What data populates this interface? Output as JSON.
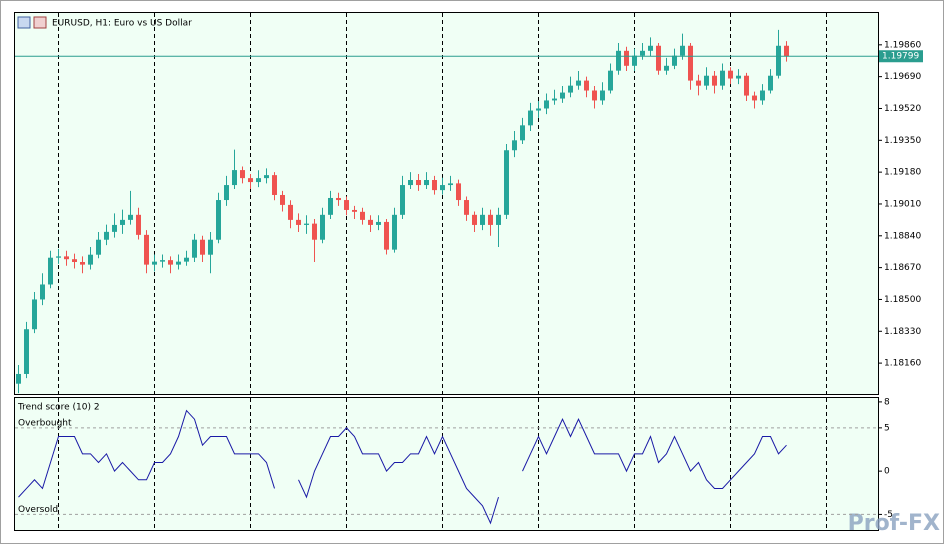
{
  "chart_data": [
    {
      "type": "candlestick",
      "title": "EURUSD, H1:  Euro vs US Dollar",
      "up_color": "#26a69a",
      "down_color": "#ef5350",
      "candles": [
        [
          1.1805,
          1.1815,
          1.18,
          1.18102
        ],
        [
          1.18102,
          1.1838,
          1.1808,
          1.18341
        ],
        [
          1.18341,
          1.1854,
          1.1832,
          1.185
        ],
        [
          1.185,
          1.1864,
          1.1847,
          1.1858
        ],
        [
          1.1858,
          1.1876,
          1.1856,
          1.18723
        ],
        [
          1.18723,
          1.1877,
          1.1869,
          1.1873
        ],
        [
          1.1873,
          1.1876,
          1.1868,
          1.18715
        ],
        [
          1.18715,
          1.18745,
          1.18665,
          1.187
        ],
        [
          1.187,
          1.1873,
          1.1864,
          1.18686
        ],
        [
          1.18686,
          1.1878,
          1.1866,
          1.18739
        ],
        [
          1.18739,
          1.1886,
          1.1872,
          1.18819
        ],
        [
          1.18819,
          1.189,
          1.1879,
          1.18861
        ],
        [
          1.18861,
          1.1896,
          1.1883,
          1.18898
        ],
        [
          1.18898,
          1.1898,
          1.1885,
          1.18925
        ],
        [
          1.18925,
          1.1908,
          1.189,
          1.18952
        ],
        [
          1.18952,
          1.1899,
          1.1882,
          1.18845
        ],
        [
          1.18845,
          1.1887,
          1.1864,
          1.18686
        ],
        [
          1.18686,
          1.1874,
          1.1865,
          1.18702
        ],
        [
          1.18702,
          1.1874,
          1.1867,
          1.1871
        ],
        [
          1.1871,
          1.1873,
          1.1864,
          1.18686
        ],
        [
          1.18686,
          1.1874,
          1.1866,
          1.18702
        ],
        [
          1.18702,
          1.1876,
          1.1868,
          1.18723
        ],
        [
          1.18723,
          1.1885,
          1.187,
          1.18819
        ],
        [
          1.18819,
          1.1884,
          1.187,
          1.18739
        ],
        [
          1.18739,
          1.1886,
          1.1864,
          1.18819
        ],
        [
          1.18819,
          1.1907,
          1.188,
          1.19031
        ],
        [
          1.19031,
          1.1916,
          1.19,
          1.19111
        ],
        [
          1.19111,
          1.193,
          1.1909,
          1.19191
        ],
        [
          1.19191,
          1.1921,
          1.1912,
          1.19148
        ],
        [
          1.19148,
          1.1917,
          1.1909,
          1.19127
        ],
        [
          1.19127,
          1.1919,
          1.191,
          1.19148
        ],
        [
          1.19148,
          1.192,
          1.1912,
          1.19164
        ],
        [
          1.19164,
          1.1918,
          1.1903,
          1.19058
        ],
        [
          1.19058,
          1.1908,
          1.1897,
          1.19005
        ],
        [
          1.19005,
          1.1903,
          1.1888,
          1.18925
        ],
        [
          1.18925,
          1.1896,
          1.1886,
          1.18898
        ],
        [
          1.18898,
          1.1895,
          1.1885,
          1.18905
        ],
        [
          1.18905,
          1.1893,
          1.187,
          1.18819
        ],
        [
          1.18819,
          1.1899,
          1.188,
          1.18952
        ],
        [
          1.18952,
          1.1908,
          1.1893,
          1.19042
        ],
        [
          1.19042,
          1.1907,
          1.19,
          1.19031
        ],
        [
          1.19031,
          1.1905,
          1.1895,
          1.18978
        ],
        [
          1.18978,
          1.19,
          1.1893,
          1.18968
        ],
        [
          1.18968,
          1.1899,
          1.189,
          1.18925
        ],
        [
          1.18925,
          1.1895,
          1.1886,
          1.18898
        ],
        [
          1.18898,
          1.1895,
          1.1887,
          1.18914
        ],
        [
          1.18914,
          1.1893,
          1.1874,
          1.18766
        ],
        [
          1.18766,
          1.1899,
          1.1875,
          1.18952
        ],
        [
          1.18952,
          1.1916,
          1.1893,
          1.19111
        ],
        [
          1.19111,
          1.1918,
          1.1909,
          1.19138
        ],
        [
          1.19138,
          1.1917,
          1.1908,
          1.19111
        ],
        [
          1.19111,
          1.1918,
          1.1909,
          1.19138
        ],
        [
          1.19138,
          1.1916,
          1.1906,
          1.19084
        ],
        [
          1.19084,
          1.1915,
          1.1906,
          1.19111
        ],
        [
          1.19111,
          1.1916,
          1.1908,
          1.1912
        ],
        [
          1.1912,
          1.1914,
          1.19,
          1.19031
        ],
        [
          1.19031,
          1.1905,
          1.1892,
          1.18952
        ],
        [
          1.18952,
          1.1897,
          1.1886,
          1.18898
        ],
        [
          1.18898,
          1.1899,
          1.1887,
          1.18952
        ],
        [
          1.18952,
          1.1898,
          1.1884,
          1.18898
        ],
        [
          1.18898,
          1.1899,
          1.1878,
          1.18952
        ],
        [
          1.18952,
          1.1933,
          1.1893,
          1.19297
        ],
        [
          1.19297,
          1.194,
          1.1926,
          1.1935
        ],
        [
          1.1935,
          1.1947,
          1.1933,
          1.1943
        ],
        [
          1.1943,
          1.1955,
          1.194,
          1.19509
        ],
        [
          1.19509,
          1.1956,
          1.1947,
          1.1952
        ],
        [
          1.1952,
          1.196,
          1.1949,
          1.19563
        ],
        [
          1.19563,
          1.1962,
          1.1954,
          1.19573
        ],
        [
          1.19573,
          1.1964,
          1.1955,
          1.19605
        ],
        [
          1.19605,
          1.1969,
          1.1958,
          1.19642
        ],
        [
          1.19642,
          1.1972,
          1.1962,
          1.19669
        ],
        [
          1.19669,
          1.1969,
          1.1958,
          1.19616
        ],
        [
          1.19616,
          1.1964,
          1.1952,
          1.19563
        ],
        [
          1.19563,
          1.1966,
          1.1954,
          1.19616
        ],
        [
          1.19616,
          1.1976,
          1.196,
          1.19722
        ],
        [
          1.19722,
          1.1987,
          1.197,
          1.19828
        ],
        [
          1.19828,
          1.1985,
          1.1972,
          1.19748
        ],
        [
          1.19748,
          1.1984,
          1.1972,
          1.19802
        ],
        [
          1.19802,
          1.1987,
          1.1978,
          1.19828
        ],
        [
          1.19828,
          1.199,
          1.198,
          1.19855
        ],
        [
          1.19855,
          1.1987,
          1.197,
          1.19722
        ],
        [
          1.19722,
          1.1979,
          1.197,
          1.19748
        ],
        [
          1.19748,
          1.1984,
          1.1973,
          1.19802
        ],
        [
          1.19802,
          1.1992,
          1.1978,
          1.19855
        ],
        [
          1.19855,
          1.1987,
          1.1962,
          1.19669
        ],
        [
          1.19669,
          1.197,
          1.1959,
          1.19642
        ],
        [
          1.19642,
          1.1974,
          1.1962,
          1.19695
        ],
        [
          1.19695,
          1.1972,
          1.196,
          1.19642
        ],
        [
          1.19642,
          1.1976,
          1.1962,
          1.19722
        ],
        [
          1.19722,
          1.1974,
          1.1965,
          1.1968
        ],
        [
          1.1968,
          1.1973,
          1.1965,
          1.19695
        ],
        [
          1.19695,
          1.1971,
          1.1956,
          1.19589
        ],
        [
          1.19589,
          1.1961,
          1.1952,
          1.19563
        ],
        [
          1.19563,
          1.1965,
          1.1954,
          1.19616
        ],
        [
          1.19616,
          1.1973,
          1.196,
          1.19695
        ],
        [
          1.19695,
          1.1994,
          1.1968,
          1.19855
        ],
        [
          1.19855,
          1.1988,
          1.1977,
          1.19799
        ]
      ],
      "ylim": [
        1.17995,
        1.2003
      ],
      "yticks": [
        {
          "value": 1.1986,
          "label": "1.19860"
        },
        {
          "value": 1.1969,
          "label": "1.19690"
        },
        {
          "value": 1.1952,
          "label": "1.19520"
        },
        {
          "value": 1.1935,
          "label": "1.19350"
        },
        {
          "value": 1.1918,
          "label": "1.19180"
        },
        {
          "value": 1.1901,
          "label": "1.19010"
        },
        {
          "value": 1.1884,
          "label": "1.18840"
        },
        {
          "value": 1.1867,
          "label": "1.18670"
        },
        {
          "value": 1.185,
          "label": "1.18500"
        },
        {
          "value": 1.1833,
          "label": "1.18330"
        },
        {
          "value": 1.1816,
          "label": "1.18160"
        }
      ],
      "last_price": 1.19799,
      "last_price_color": "#2a9d8f"
    },
    {
      "type": "line",
      "title": "Trend score (10) 2",
      "color": "#1a1aa6",
      "values": [
        -3,
        -2,
        -1,
        -2,
        1,
        4,
        4,
        4,
        2,
        2,
        1,
        2,
        0,
        1,
        0,
        -1,
        -1,
        1,
        1,
        2,
        4,
        7,
        6,
        3,
        4,
        4,
        4,
        2,
        2,
        2,
        2,
        1,
        -2,
        null,
        null,
        -1,
        -3,
        0,
        2,
        4,
        4,
        5,
        4,
        2,
        2,
        2,
        0,
        1,
        1,
        2,
        2,
        4,
        2,
        4,
        2,
        0,
        -2,
        -3,
        -4,
        -6,
        -3,
        null,
        null,
        0,
        2,
        4,
        2,
        4,
        6,
        4,
        6,
        4,
        2,
        2,
        2,
        2,
        0,
        2,
        2,
        4,
        1,
        2,
        4,
        2,
        0,
        1,
        -1,
        -2,
        -2,
        -1,
        0,
        1,
        2,
        4,
        4,
        2,
        3
      ],
      "ylim": [
        -6.8,
        8.45
      ],
      "yticks": [
        8,
        5,
        0,
        -5
      ],
      "levels": [
        {
          "value": 5,
          "label": "Overbought"
        },
        {
          "value": -5,
          "label": "Oversold"
        }
      ]
    }
  ],
  "watermark": "Prof-FX"
}
